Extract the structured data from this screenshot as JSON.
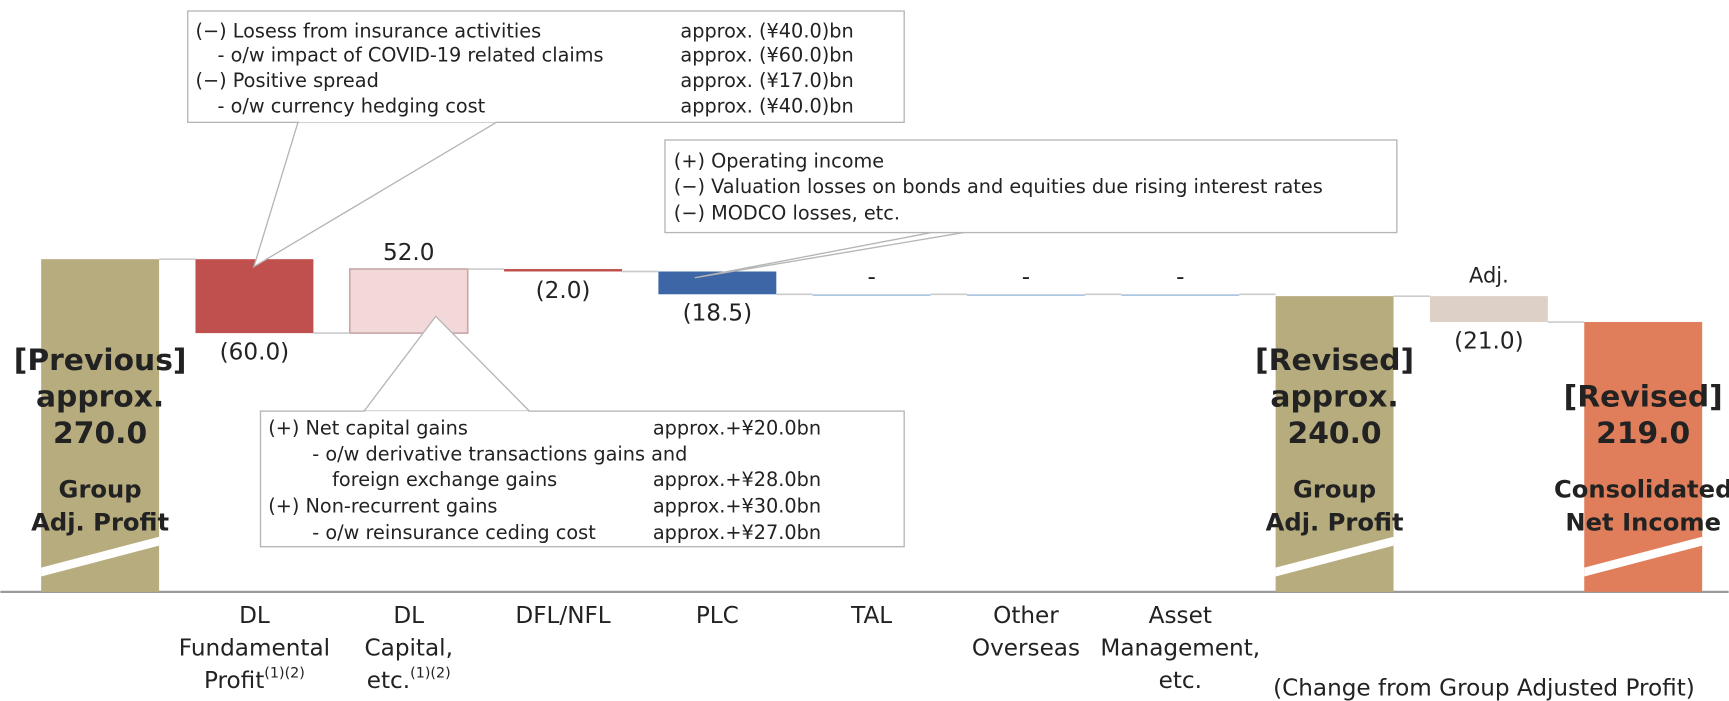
{
  "chart_data": {
    "type": "waterfall",
    "categories": [
      null,
      {
        "lines": [
          "DL",
          "Fundamental",
          "Profit"
        ],
        "note": "(1)(2)"
      },
      {
        "lines": [
          "DL",
          "Capital,",
          "etc."
        ],
        "note": "(1)(2)"
      },
      {
        "lines": [
          "DFL/NFL"
        ]
      },
      {
        "lines": [
          "PLC"
        ]
      },
      {
        "lines": [
          "TAL"
        ]
      },
      {
        "lines": [
          "Other",
          "Overseas"
        ]
      },
      {
        "lines": [
          "Asset",
          "Management,",
          "etc."
        ]
      },
      null,
      null,
      null
    ],
    "values": [
      270.0,
      -60.0,
      52.0,
      -2.0,
      -18.5,
      0,
      0,
      0,
      240.0,
      -21.0,
      219.0
    ],
    "value_labels": [
      "270.0",
      "(60.0)",
      "52.0",
      "(2.0)",
      "(18.5)",
      "-",
      "-",
      "-",
      "240.0",
      "(21.0)",
      "219.0"
    ],
    "is_total": [
      true,
      false,
      false,
      false,
      false,
      false,
      false,
      false,
      true,
      false,
      true
    ],
    "labels_above": [
      [
        "[Previous]",
        "approx."
      ],
      null,
      null,
      null,
      null,
      null,
      null,
      null,
      [
        "[Revised]",
        "approx."
      ],
      [
        "Adj."
      ],
      [
        "[Revised]"
      ]
    ],
    "labels_below": [
      [
        "Group",
        "Adj. Profit"
      ],
      null,
      null,
      null,
      null,
      null,
      null,
      null,
      [
        "Group",
        "Adj. Profit"
      ],
      null,
      [
        "Consolidated",
        "Net Income"
      ]
    ],
    "colors": [
      "#b7ac7e",
      "#c0504d",
      "#f2d8d8",
      "#c0504d",
      "#3d66a6",
      "#a9c4df",
      "#a9c4df",
      "#a9c4df",
      "#b7ac7e",
      "#ddd0c7",
      "#e07e5c"
    ],
    "annotations": [
      {
        "target": 1,
        "rows": [
          [
            "(−) Losess from insurance activities",
            "approx. (¥40.0)bn"
          ],
          [
            "- o/w impact of COVID-19 related claims",
            "approx. (¥60.0)bn"
          ],
          [
            "(−) Positive spread",
            "approx. (¥17.0)bn"
          ],
          [
            "- o/w currency hedging cost",
            "approx. (¥40.0)bn"
          ]
        ]
      },
      {
        "target": 4,
        "rows": [
          [
            "(+) Operating income"
          ],
          [
            "(−) Valuation losses on bonds and equities due rising interest rates"
          ],
          [
            "(−) MODCO losses, etc."
          ]
        ]
      },
      {
        "target": 2,
        "rows": [
          [
            "(+) Net capital gains",
            "approx.+¥20.0bn"
          ],
          [
            "- o/w derivative transactions gains and"
          ],
          [
            "foreign exchange gains",
            "approx.+¥28.0bn"
          ],
          [
            "(+) Non-recurrent gains",
            "approx.+¥30.0bn"
          ],
          [
            "- o/w reinsurance ceding cost",
            "approx.+¥27.0bn"
          ]
        ]
      }
    ],
    "footnote": "(Change from Group Adjusted Profit)"
  }
}
